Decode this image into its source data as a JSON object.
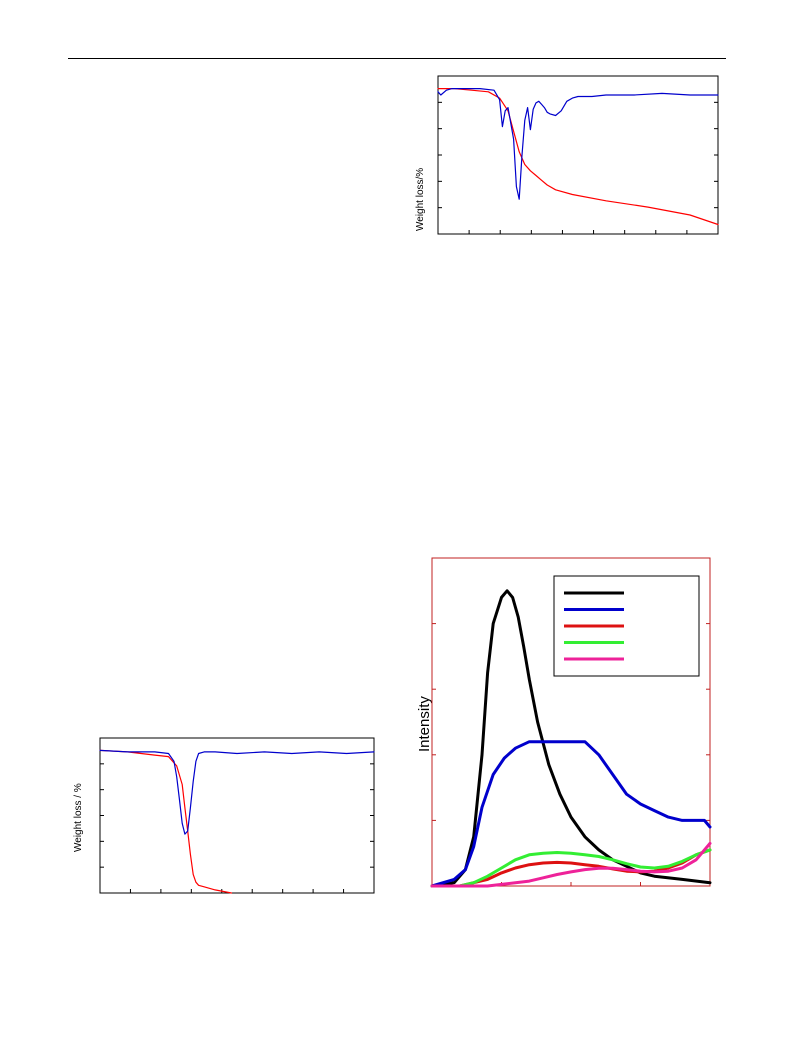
{
  "charts": [
    {
      "id": "tg-dtg-top",
      "type": "line",
      "ylabel": "Weight loss/%",
      "xlim": [
        0,
        100
      ],
      "ylim": [
        0,
        100
      ],
      "frame_color": "#000000",
      "series": [
        {
          "color": "#ff0000",
          "x": [
            0,
            6,
            12,
            18,
            22,
            25,
            27,
            29,
            31,
            33,
            35,
            37,
            39,
            42,
            48,
            60,
            75,
            90,
            100
          ],
          "y": [
            92,
            92,
            91,
            90,
            86,
            78,
            65,
            52,
            44,
            40,
            37,
            34,
            31,
            28,
            25,
            21,
            17,
            12,
            6
          ]
        },
        {
          "color": "#0000cc",
          "x": [
            0,
            1,
            3,
            5,
            10,
            15,
            20,
            22,
            23,
            24,
            25,
            27,
            28,
            29,
            30,
            31,
            32,
            33,
            34,
            35,
            36,
            37,
            38,
            39,
            40,
            42,
            44,
            46,
            48,
            50,
            55,
            60,
            70,
            80,
            90,
            100
          ],
          "y": [
            90,
            88,
            91,
            92,
            92,
            92,
            91,
            85,
            68,
            78,
            80,
            60,
            30,
            22,
            50,
            72,
            80,
            66,
            79,
            83,
            84,
            82,
            80,
            77,
            76,
            75,
            78,
            84,
            86,
            87,
            87,
            88,
            88,
            89,
            88,
            88
          ]
        }
      ]
    },
    {
      "id": "tg-dtg-bottom-left",
      "type": "line",
      "ylabel": "Weight loss / %",
      "xlim": [
        0,
        100
      ],
      "ylim": [
        0,
        100
      ],
      "frame_color": "#000000",
      "series": [
        {
          "color": "#ff0000",
          "x": [
            0,
            10,
            20,
            25,
            28,
            30,
            31,
            32,
            33,
            34,
            35,
            36,
            38,
            42,
            48
          ],
          "y": [
            92,
            91,
            89,
            88,
            82,
            70,
            55,
            40,
            25,
            12,
            7,
            5,
            4,
            2,
            0
          ]
        },
        {
          "color": "#0000cc",
          "x": [
            0,
            10,
            20,
            25,
            27,
            28,
            29,
            30,
            31,
            32,
            33,
            34,
            35,
            36,
            38,
            42,
            50,
            60,
            70,
            80,
            90,
            100
          ],
          "y": [
            92,
            91,
            91,
            90,
            85,
            75,
            60,
            45,
            38,
            40,
            55,
            72,
            85,
            90,
            91,
            91,
            90,
            91,
            90,
            91,
            90,
            91
          ]
        }
      ]
    },
    {
      "id": "intensity-right",
      "type": "line",
      "ylabel": "Intensity",
      "xlim": [
        0,
        100
      ],
      "ylim": [
        0,
        100
      ],
      "frame_color": "#c02020",
      "series": [
        {
          "color": "#000000",
          "x": [
            0,
            8,
            12,
            15,
            18,
            20,
            22,
            25,
            27,
            29,
            31,
            33,
            35,
            38,
            42,
            46,
            50,
            55,
            60,
            65,
            70,
            75,
            80,
            90,
            100
          ],
          "y": [
            0,
            1,
            5,
            15,
            40,
            65,
            80,
            88,
            90,
            88,
            82,
            73,
            63,
            50,
            37,
            28,
            21,
            15,
            11,
            8,
            6,
            4,
            3,
            2,
            1
          ]
        },
        {
          "color": "#0000cc",
          "x": [
            0,
            8,
            12,
            15,
            18,
            22,
            26,
            30,
            35,
            40,
            45,
            50,
            55,
            60,
            65,
            70,
            75,
            80,
            85,
            90,
            95,
            98,
            100
          ],
          "y": [
            0,
            2,
            5,
            12,
            24,
            34,
            39,
            42,
            44,
            44,
            44,
            44,
            44,
            40,
            34,
            28,
            25,
            23,
            21,
            20,
            20,
            20,
            18
          ]
        },
        {
          "color": "#dd1111",
          "x": [
            0,
            10,
            15,
            20,
            25,
            30,
            35,
            40,
            45,
            50,
            55,
            60,
            65,
            70,
            75,
            80,
            85,
            90,
            95,
            100
          ],
          "y": [
            0,
            0,
            1,
            2,
            4,
            5.5,
            6.5,
            7,
            7.2,
            7,
            6.5,
            6,
            5.2,
            4.5,
            4.3,
            4.5,
            5.5,
            7,
            9.5,
            11
          ]
        },
        {
          "color": "#33ee33",
          "x": [
            0,
            10,
            15,
            20,
            25,
            30,
            35,
            40,
            45,
            50,
            55,
            60,
            65,
            70,
            75,
            80,
            85,
            90,
            95,
            100
          ],
          "y": [
            0,
            0,
            1,
            3,
            5.5,
            8,
            9.5,
            10,
            10.2,
            10,
            9.5,
            9,
            8,
            6.8,
            5.8,
            5.5,
            6,
            7.5,
            9.5,
            11
          ]
        },
        {
          "color": "#ee2299",
          "x": [
            0,
            15,
            20,
            25,
            30,
            35,
            40,
            45,
            50,
            55,
            60,
            65,
            70,
            75,
            80,
            85,
            90,
            95,
            100
          ],
          "y": [
            0,
            0,
            0,
            0.5,
            1,
            1.5,
            2.5,
            3.5,
            4.3,
            5,
            5.4,
            5.4,
            5,
            4.5,
            4.3,
            4.5,
            5.5,
            8,
            13
          ]
        }
      ],
      "legend": {
        "placement": "top-right",
        "entries": [
          {
            "color": "#000000"
          },
          {
            "color": "#0000cc"
          },
          {
            "color": "#dd1111"
          },
          {
            "color": "#33ee33"
          },
          {
            "color": "#ee2299"
          }
        ]
      }
    }
  ]
}
